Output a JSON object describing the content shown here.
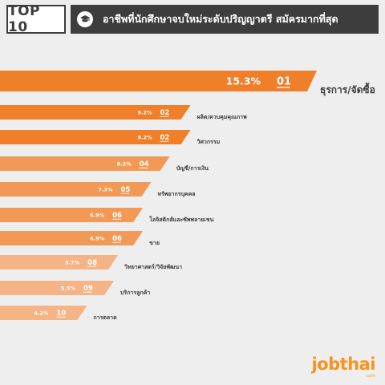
{
  "header": {
    "badge": "TOP 10",
    "title": "อาชีพที่นักศึกษาจบใหม่ระดับปริญญาตรี สมัครมากที่สุด"
  },
  "brand": {
    "logo": "jobthai",
    "logo_sub": ".com"
  },
  "colors": {
    "dark": "#3d3d3d",
    "bar_top": "#f07f2a",
    "bar_mid": "#f29a55",
    "bar_low": "#f5b486"
  },
  "icons": {
    "title": "graduation-cap-icon"
  },
  "chart_data": {
    "type": "bar",
    "orientation": "horizontal",
    "value_suffix": "%",
    "items": [
      {
        "rank": "01",
        "label": "ธุรการ/จัดซื้อ",
        "value": 15.3
      },
      {
        "rank": "02",
        "label": "ผลิต/ควบคุมคุณภาพ",
        "value": 9.2
      },
      {
        "rank": "02",
        "label": "วิศวกรรม",
        "value": 9.2
      },
      {
        "rank": "04",
        "label": "บัญชี/การเงิน",
        "value": 8.2
      },
      {
        "rank": "05",
        "label": "ทรัพยากรบุคคล",
        "value": 7.3
      },
      {
        "rank": "06",
        "label": "โลจิสติกส์และซัพพลายเชน",
        "value": 6.9
      },
      {
        "rank": "06",
        "label": "ขาย",
        "value": 6.9
      },
      {
        "rank": "08",
        "label": "วิทยาศาสตร์/วิจัยพัฒนา",
        "value": 5.7
      },
      {
        "rank": "09",
        "label": "บริการลูกค้า",
        "value": 5.5
      },
      {
        "rank": "10",
        "label": "การตลาด",
        "value": 4.2
      }
    ]
  }
}
